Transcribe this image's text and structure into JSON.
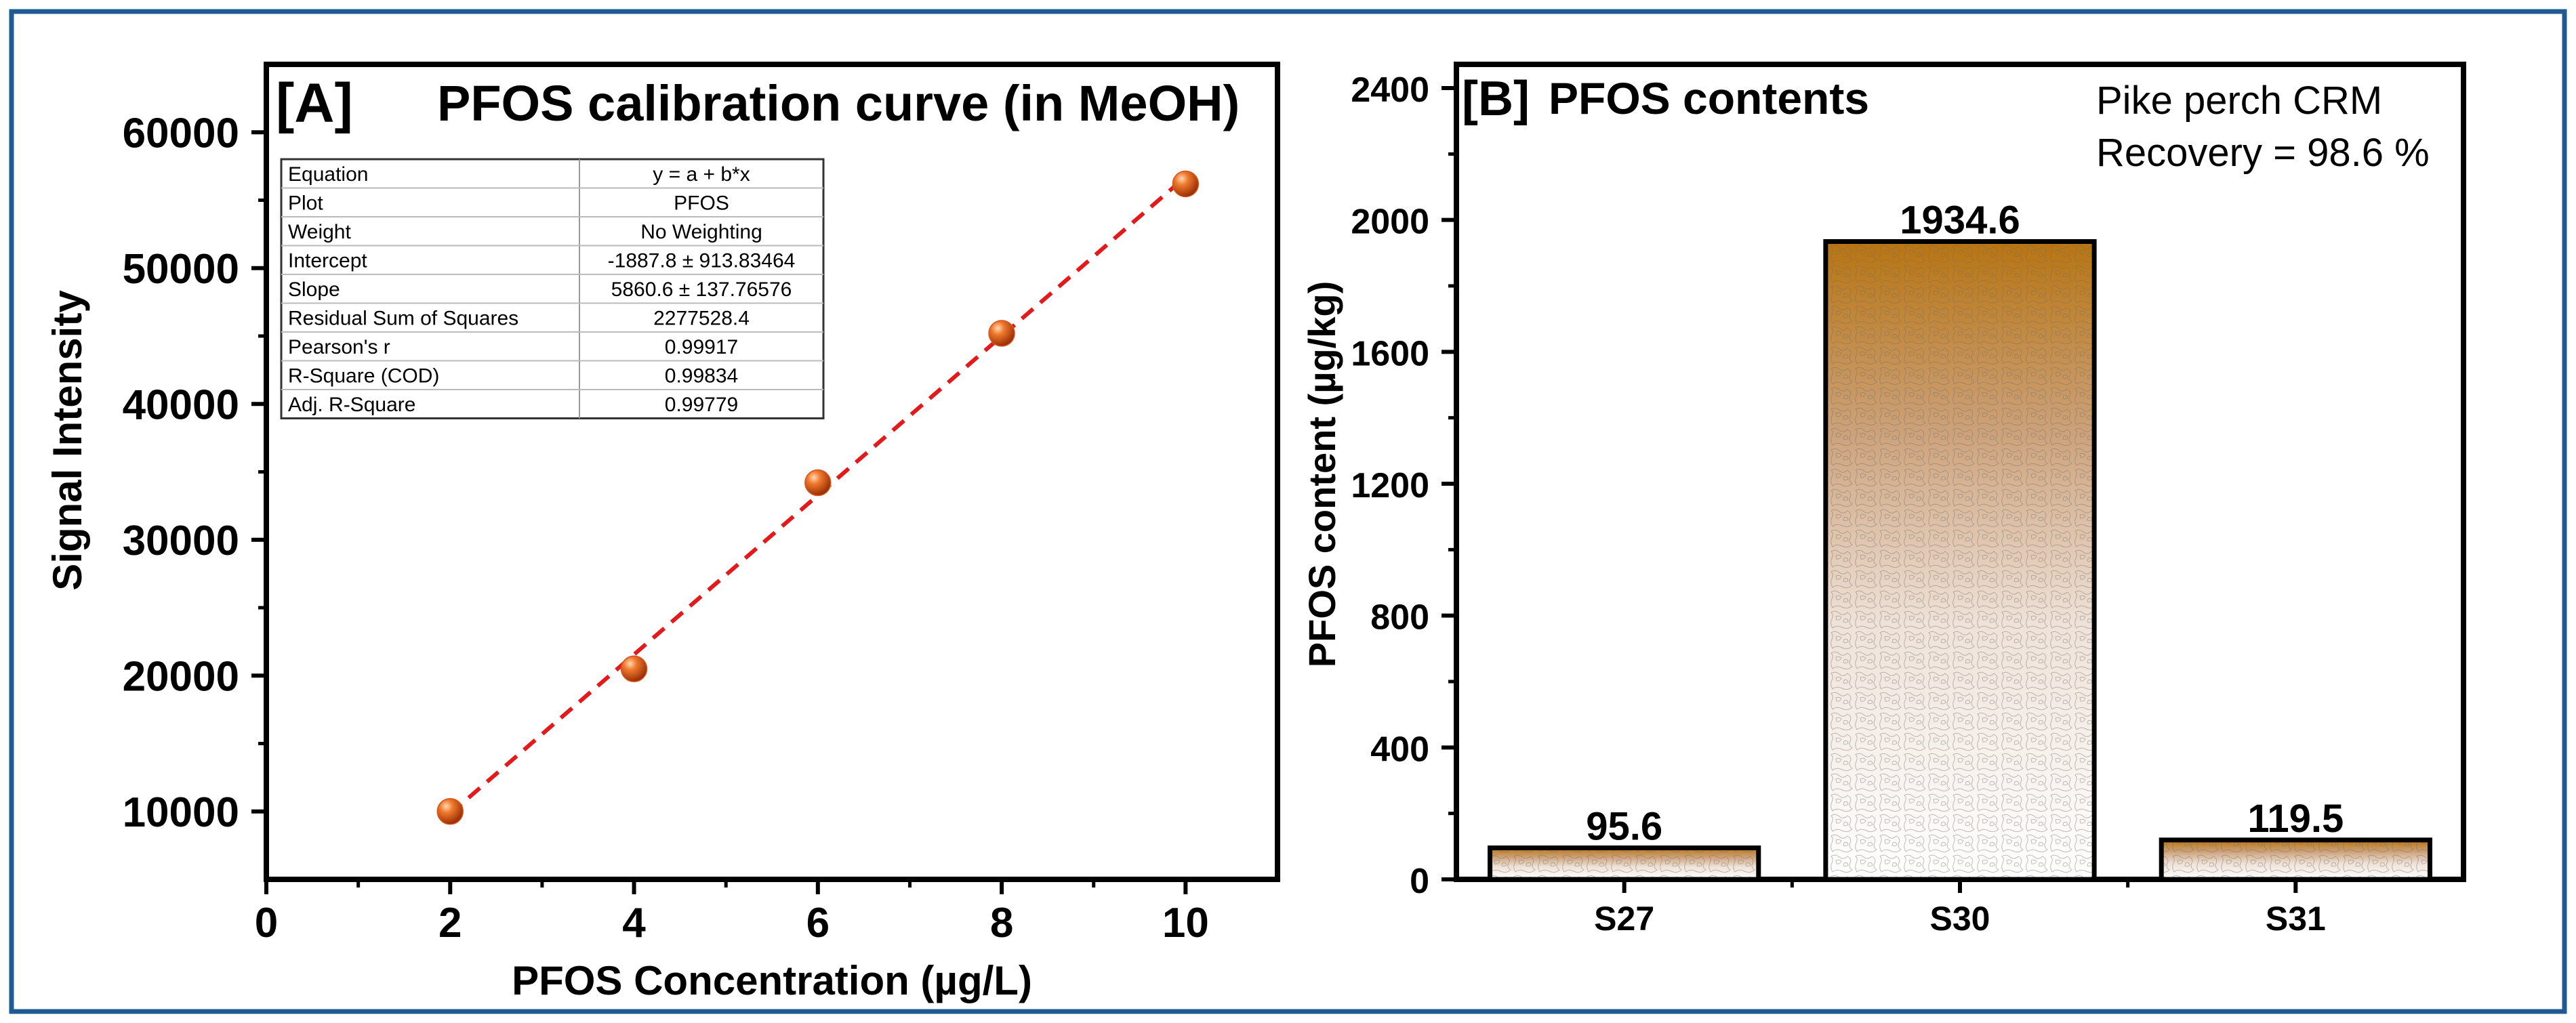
{
  "colors": {
    "frame": "#1f5a93",
    "axis": "#000000",
    "fit_line": "#e31a1c",
    "marker": "#d9541a",
    "bar_top": "#b8740f",
    "bar_bottom": "#ffffff"
  },
  "chart_data": [
    {
      "panel": "A",
      "type": "scatter",
      "panel_label": "[A]",
      "title": "PFOS calibration curve (in MeOH)",
      "xlabel": "PFOS Concentration (µg/L)",
      "ylabel": "Signal Intensity",
      "xlim": [
        0,
        11
      ],
      "ylim": [
        5000,
        65000
      ],
      "xticks": [
        0,
        2,
        4,
        6,
        8,
        10
      ],
      "yticks": [
        10000,
        20000,
        30000,
        40000,
        50000,
        60000
      ],
      "x": [
        2,
        4,
        6,
        8,
        10
      ],
      "y": [
        10000,
        20500,
        34200,
        45200,
        56200
      ],
      "fit": {
        "intercept": -1887.8,
        "slope": 5860.6,
        "style": "dashed"
      },
      "fit_table": [
        [
          "Equation",
          "y = a + b*x"
        ],
        [
          "Plot",
          "PFOS"
        ],
        [
          "Weight",
          "No Weighting"
        ],
        [
          "Intercept",
          "-1887.8 ± 913.83464"
        ],
        [
          "Slope",
          "5860.6 ± 137.76576"
        ],
        [
          "Residual Sum of Squares",
          "2277528.4"
        ],
        [
          "Pearson's r",
          "0.99917"
        ],
        [
          "R-Square (COD)",
          "0.99834"
        ],
        [
          "Adj. R-Square",
          "0.99779"
        ]
      ]
    },
    {
      "panel": "B",
      "type": "bar",
      "panel_label": "[B]",
      "title": "PFOS contents",
      "annotation_lines": [
        "Pike perch CRM",
        "Recovery = 98.6 %"
      ],
      "xlabel": "",
      "ylabel": "PFOS content (µg/kg)",
      "ylim": [
        0,
        2400
      ],
      "yticks": [
        0,
        400,
        800,
        1200,
        1600,
        2000,
        2400
      ],
      "categories": [
        "S27",
        "S30",
        "S31"
      ],
      "values": [
        95.6,
        1934.6,
        119.5
      ],
      "data_labels": [
        "95.6",
        "1934.6",
        "119.5"
      ]
    }
  ]
}
